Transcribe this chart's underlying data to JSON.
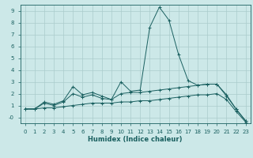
{
  "xlabel": "Humidex (Indice chaleur)",
  "bg_color": "#cce8e8",
  "grid_color": "#aacccc",
  "line_color": "#1a6060",
  "x_ticks": [
    0,
    1,
    2,
    3,
    4,
    5,
    6,
    7,
    8,
    9,
    10,
    11,
    12,
    13,
    14,
    15,
    16,
    17,
    18,
    19,
    20,
    21,
    22,
    23
  ],
  "ylim": [
    -0.5,
    9.5
  ],
  "xlim": [
    -0.5,
    23.5
  ],
  "series": [
    {
      "x": [
        0,
        1,
        2,
        3,
        4,
        5,
        6,
        7,
        8,
        9,
        10,
        11,
        12,
        13,
        14,
        15,
        16,
        17,
        18,
        19,
        20,
        21,
        22,
        23
      ],
      "y": [
        0.7,
        0.7,
        1.3,
        1.1,
        1.4,
        2.6,
        1.9,
        2.1,
        1.8,
        1.5,
        3.0,
        2.2,
        2.3,
        7.6,
        9.3,
        8.2,
        5.3,
        3.1,
        2.7,
        2.8,
        2.8,
        1.9,
        0.7,
        -0.3
      ]
    },
    {
      "x": [
        0,
        1,
        2,
        3,
        4,
        5,
        6,
        7,
        8,
        9,
        10,
        11,
        12,
        13,
        14,
        15,
        16,
        17,
        18,
        19,
        20,
        21,
        22,
        23
      ],
      "y": [
        0.7,
        0.7,
        1.2,
        1.0,
        1.3,
        2.0,
        1.7,
        1.9,
        1.6,
        1.5,
        2.0,
        2.1,
        2.1,
        2.2,
        2.3,
        2.4,
        2.5,
        2.6,
        2.7,
        2.8,
        2.8,
        1.8,
        0.7,
        -0.3
      ]
    },
    {
      "x": [
        0,
        1,
        2,
        3,
        4,
        5,
        6,
        7,
        8,
        9,
        10,
        11,
        12,
        13,
        14,
        15,
        16,
        17,
        18,
        19,
        20,
        21,
        22,
        23
      ],
      "y": [
        0.7,
        0.7,
        0.8,
        0.8,
        0.9,
        1.0,
        1.1,
        1.2,
        1.2,
        1.2,
        1.3,
        1.3,
        1.4,
        1.4,
        1.5,
        1.6,
        1.7,
        1.8,
        1.9,
        1.9,
        2.0,
        1.5,
        0.5,
        -0.4
      ]
    }
  ]
}
